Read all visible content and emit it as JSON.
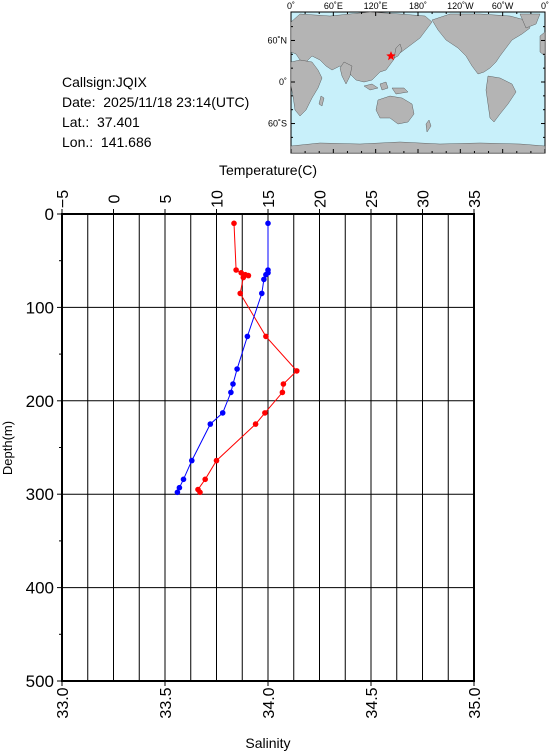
{
  "info": {
    "callsign": "Callsign:JQIX",
    "date": "Date:  2025/11/18 23:14(UTC)",
    "lat": "Lat.:  37.401",
    "lon": "Lon.:  141.686"
  },
  "map": {
    "top_labels": [
      "0˚",
      "60˚E",
      "120˚E",
      "180˚",
      "120˚W",
      "60˚W",
      "0˚"
    ],
    "left_labels": [
      "60˚N",
      "0˚",
      "60˚S"
    ],
    "station": {
      "lat": 37.401,
      "lon": 141.686,
      "marker_color": "#ff0000"
    },
    "ocean_color": "#c8f0fa",
    "land_color": "#b4b4b4"
  },
  "chart_data": {
    "type": "line",
    "title": "",
    "ylabel": "Depth(m)",
    "ylim": [
      500,
      0
    ],
    "yticks": [
      "0",
      "100",
      "200",
      "300",
      "400",
      "500"
    ],
    "grid": true,
    "temperature_axis": {
      "label": "Temperature(C)",
      "lim": [
        -5,
        35
      ],
      "ticks": [
        "−5",
        "0",
        "5",
        "10",
        "15",
        "20",
        "25",
        "30",
        "35"
      ]
    },
    "salinity_axis": {
      "label": "Salinity",
      "lim": [
        33.0,
        35.0
      ],
      "ticks": [
        "33.0",
        "33.5",
        "34.0",
        "34.5",
        "35.0"
      ]
    },
    "series": [
      {
        "color": "#ff0000",
        "axis": "temperature",
        "depth": [
          10,
          60,
          63,
          65,
          66,
          68,
          85,
          131,
          168,
          182,
          191,
          213,
          225,
          264,
          284,
          295,
          298
        ],
        "values": [
          11.7,
          11.9,
          12.4,
          12.8,
          13.1,
          12.6,
          12.3,
          14.8,
          17.8,
          16.5,
          16.4,
          14.7,
          13.8,
          10.0,
          8.9,
          8.2,
          8.4
        ]
      },
      {
        "color": "#0000ff",
        "axis": "salinity",
        "depth": [
          10,
          60,
          63,
          65,
          70,
          85,
          131,
          166,
          182,
          191,
          213,
          225,
          264,
          284,
          293,
          298
        ],
        "values": [
          34.0,
          34.0,
          34.0,
          33.99,
          33.98,
          33.97,
          33.9,
          33.85,
          33.83,
          33.82,
          33.78,
          33.72,
          33.63,
          33.59,
          33.57,
          33.56
        ]
      }
    ]
  }
}
